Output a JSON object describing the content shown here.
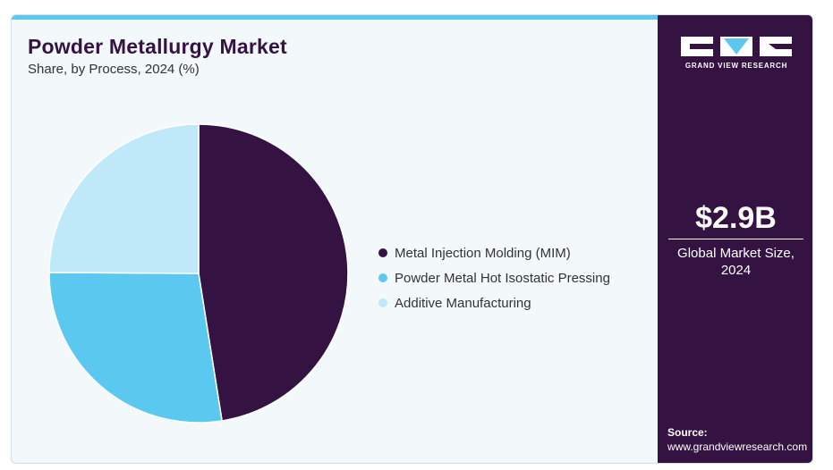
{
  "header": {
    "title": "Powder Metallurgy Market",
    "subtitle": "Share, by Process, 2024 (%)"
  },
  "chart_data": {
    "type": "pie",
    "title": "Powder Metallurgy Market",
    "subtitle": "Share, by Process, 2024 (%)",
    "categories": [
      "Metal Injection Molding (MIM)",
      "Powder Metal Hot Isostatic Pressing",
      "Additive Manufacturing"
    ],
    "values": [
      47.5,
      27.6,
      24.9
    ],
    "colors": [
      "#341242",
      "#5bc8f0",
      "#bfe8f8"
    ],
    "start_angle_deg": 0,
    "direction": "clockwise",
    "legend_position": "right"
  },
  "legend": {
    "items": [
      {
        "label": "Metal Injection Molding (MIM)",
        "color": "#341242"
      },
      {
        "label": "Powder Metal Hot Isostatic Pressing",
        "color": "#5bc8f0"
      },
      {
        "label": "Additive Manufacturing",
        "color": "#bfe8f8"
      }
    ]
  },
  "side_panel": {
    "logo_icon": "gvr-logo-icon",
    "logo_text": "GRAND VIEW RESEARCH",
    "market_value": "$2.9B",
    "market_label": "Global Market Size, 2024",
    "source_label": "Source:",
    "source_url": "www.grandviewresearch.com",
    "background_color": "#341242"
  },
  "accent_color": "#5bc8f0"
}
